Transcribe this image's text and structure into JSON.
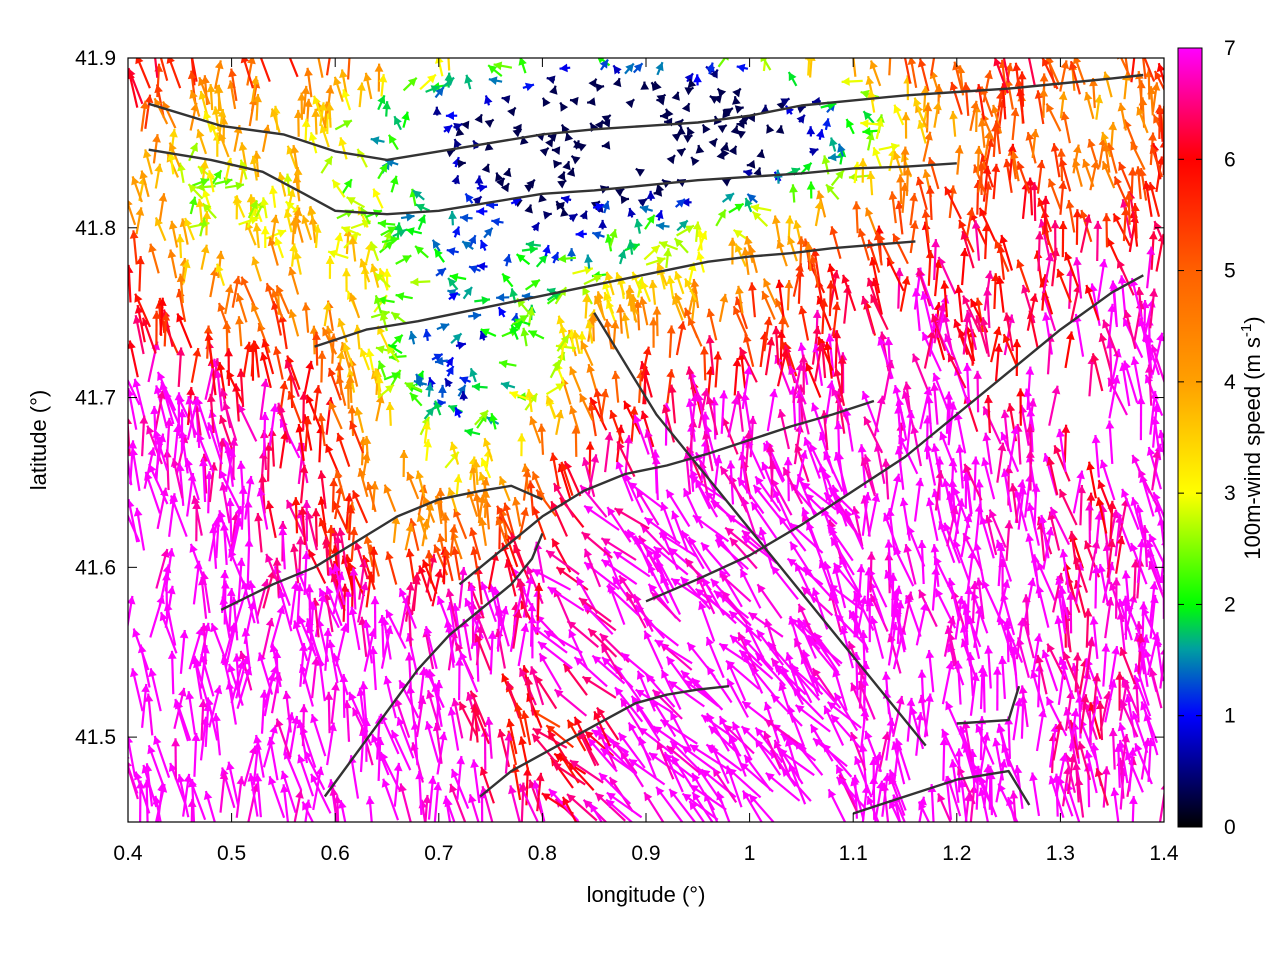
{
  "chart_data": {
    "type": "vector-field",
    "xlabel": "longitude (°)",
    "ylabel": "latitude (°)",
    "xlim": [
      0.4,
      1.4
    ],
    "ylim": [
      41.45,
      41.9
    ],
    "xticks": [
      "0.4",
      "0.5",
      "0.6",
      "0.7",
      "0.8",
      "0.9",
      "1",
      "1.1",
      "1.2",
      "1.3",
      "1.4"
    ],
    "yticks": [
      "41.5",
      "41.6",
      "41.7",
      "41.8",
      "41.9"
    ],
    "xtick_values": [
      0.4,
      0.5,
      0.6,
      0.7,
      0.8,
      0.9,
      1.0,
      1.1,
      1.2,
      1.3,
      1.4
    ],
    "ytick_values": [
      41.5,
      41.6,
      41.7,
      41.8,
      41.9
    ],
    "colorbar": {
      "label": "100m-wind speed (m s-1)",
      "label_main": "100m-wind speed (m s",
      "label_sup": "-1",
      "label_end": ")",
      "range": [
        0,
        7
      ],
      "ticks": [
        "0",
        "1",
        "2",
        "3",
        "4",
        "5",
        "6",
        "7"
      ],
      "tick_values": [
        0,
        1,
        2,
        3,
        4,
        5,
        6,
        7
      ],
      "colormap": [
        {
          "value": 0,
          "color": "#000000"
        },
        {
          "value": 1,
          "color": "#0000ff"
        },
        {
          "value": 1.6,
          "color": "#00a0a0"
        },
        {
          "value": 2,
          "color": "#00ff00"
        },
        {
          "value": 3,
          "color": "#ffff00"
        },
        {
          "value": 4,
          "color": "#ffa000"
        },
        {
          "value": 5,
          "color": "#ff6000"
        },
        {
          "value": 6,
          "color": "#ff0000"
        },
        {
          "value": 7,
          "color": "#ff00ff"
        }
      ]
    },
    "contour_color": "#333333",
    "contours": [
      [
        [
          0.42,
          41.873
        ],
        [
          0.49,
          41.86
        ],
        [
          0.55,
          41.855
        ],
        [
          0.6,
          41.845
        ],
        [
          0.65,
          41.84
        ],
        [
          0.7,
          41.845
        ],
        [
          0.75,
          41.85
        ],
        [
          0.8,
          41.855
        ],
        [
          0.85,
          41.858
        ],
        [
          0.9,
          41.86
        ],
        [
          0.95,
          41.862
        ],
        [
          1.0,
          41.866
        ],
        [
          1.05,
          41.872
        ],
        [
          1.1,
          41.875
        ],
        [
          1.15,
          41.878
        ],
        [
          1.2,
          41.88
        ],
        [
          1.25,
          41.882
        ],
        [
          1.3,
          41.885
        ],
        [
          1.35,
          41.888
        ],
        [
          1.38,
          41.89
        ]
      ],
      [
        [
          0.42,
          41.846
        ],
        [
          0.48,
          41.84
        ],
        [
          0.53,
          41.833
        ],
        [
          0.57,
          41.82
        ],
        [
          0.6,
          41.81
        ],
        [
          0.65,
          41.808
        ],
        [
          0.7,
          41.81
        ],
        [
          0.75,
          41.815
        ],
        [
          0.8,
          41.82
        ],
        [
          0.85,
          41.822
        ],
        [
          0.9,
          41.825
        ],
        [
          0.95,
          41.828
        ],
        [
          1.0,
          41.83
        ],
        [
          1.05,
          41.832
        ],
        [
          1.1,
          41.835
        ],
        [
          1.15,
          41.836
        ],
        [
          1.2,
          41.838
        ]
      ],
      [
        [
          0.58,
          41.73
        ],
        [
          0.63,
          41.74
        ],
        [
          0.68,
          41.745
        ],
        [
          0.72,
          41.75
        ],
        [
          0.76,
          41.755
        ],
        [
          0.8,
          41.76
        ],
        [
          0.84,
          41.765
        ],
        [
          0.88,
          41.77
        ],
        [
          0.92,
          41.775
        ],
        [
          0.96,
          41.78
        ],
        [
          1.0,
          41.783
        ],
        [
          1.04,
          41.785
        ],
        [
          1.08,
          41.788
        ],
        [
          1.12,
          41.79
        ],
        [
          1.16,
          41.792
        ]
      ],
      [
        [
          0.9,
          41.58
        ],
        [
          0.95,
          41.593
        ],
        [
          1.0,
          41.607
        ],
        [
          1.05,
          41.625
        ],
        [
          1.1,
          41.645
        ],
        [
          1.15,
          41.665
        ],
        [
          1.2,
          41.69
        ],
        [
          1.25,
          41.715
        ],
        [
          1.3,
          41.74
        ],
        [
          1.35,
          41.762
        ],
        [
          1.38,
          41.772
        ]
      ],
      [
        [
          0.72,
          41.59
        ],
        [
          0.76,
          41.61
        ],
        [
          0.8,
          41.63
        ],
        [
          0.84,
          41.645
        ],
        [
          0.88,
          41.655
        ],
        [
          0.92,
          41.66
        ],
        [
          0.96,
          41.667
        ],
        [
          1.0,
          41.675
        ],
        [
          1.04,
          41.683
        ],
        [
          1.08,
          41.69
        ],
        [
          1.12,
          41.698
        ]
      ],
      [
        [
          0.85,
          41.75
        ],
        [
          0.87,
          41.73
        ],
        [
          0.89,
          41.71
        ],
        [
          0.91,
          41.69
        ],
        [
          0.93,
          41.675
        ],
        [
          0.95,
          41.66
        ],
        [
          0.97,
          41.645
        ],
        [
          0.99,
          41.63
        ],
        [
          1.01,
          41.615
        ],
        [
          1.03,
          41.6
        ],
        [
          1.05,
          41.585
        ],
        [
          1.07,
          41.57
        ],
        [
          1.09,
          41.555
        ],
        [
          1.11,
          41.54
        ],
        [
          1.13,
          41.525
        ],
        [
          1.15,
          41.51
        ],
        [
          1.17,
          41.495
        ]
      ],
      [
        [
          0.49,
          41.575
        ],
        [
          0.54,
          41.59
        ],
        [
          0.58,
          41.6
        ],
        [
          0.62,
          41.615
        ],
        [
          0.66,
          41.63
        ],
        [
          0.7,
          41.64
        ],
        [
          0.74,
          41.645
        ],
        [
          0.77,
          41.648
        ],
        [
          0.8,
          41.64
        ]
      ],
      [
        [
          0.59,
          41.465
        ],
        [
          0.62,
          41.49
        ],
        [
          0.65,
          41.515
        ],
        [
          0.68,
          41.54
        ],
        [
          0.71,
          41.56
        ],
        [
          0.74,
          41.575
        ],
        [
          0.77,
          41.59
        ],
        [
          0.79,
          41.605
        ],
        [
          0.8,
          41.62
        ]
      ],
      [
        [
          0.74,
          41.465
        ],
        [
          0.77,
          41.48
        ],
        [
          0.8,
          41.49
        ],
        [
          0.83,
          41.5
        ],
        [
          0.86,
          41.51
        ],
        [
          0.89,
          41.52
        ],
        [
          0.92,
          41.525
        ],
        [
          0.95,
          41.528
        ],
        [
          0.98,
          41.53
        ]
      ],
      [
        [
          1.1,
          41.455
        ],
        [
          1.15,
          41.465
        ],
        [
          1.2,
          41.475
        ],
        [
          1.25,
          41.48
        ],
        [
          1.27,
          41.46
        ]
      ],
      [
        [
          1.2,
          41.508
        ],
        [
          1.25,
          41.51
        ],
        [
          1.26,
          41.53
        ]
      ]
    ]
  }
}
